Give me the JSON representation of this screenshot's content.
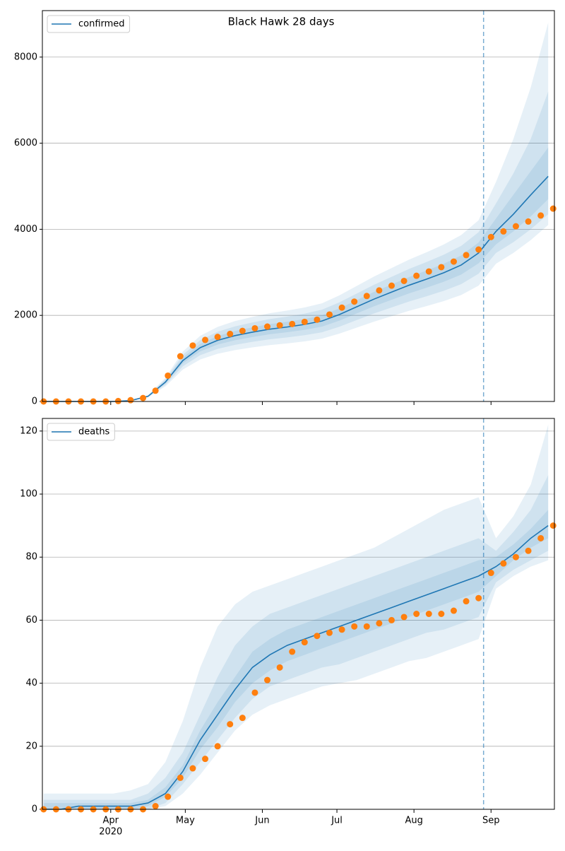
{
  "chart_data": [
    {
      "type": "line",
      "title": "Black Hawk 28 days",
      "sharex": true,
      "ylim": [
        0,
        9080
      ],
      "yticks": [
        0,
        2000,
        4000,
        6000,
        8000
      ],
      "grid": "y",
      "legend": "upper left",
      "vline": {
        "x": 242,
        "color": "#1f77b4",
        "style": "dashed"
      },
      "series": [
        {
          "name": "confirmed",
          "color": "#1f77b4",
          "x": [
            65,
            72,
            79,
            86,
            93,
            100,
            107,
            114,
            121,
            128,
            135,
            142,
            149,
            156,
            163,
            170,
            177,
            184,
            191,
            198,
            205,
            212,
            219,
            226,
            233,
            240,
            247,
            254,
            261,
            268
          ],
          "values": [
            0,
            0,
            0,
            0,
            0,
            20,
            120,
            450,
            950,
            1250,
            1420,
            1530,
            1610,
            1680,
            1730,
            1790,
            1870,
            2020,
            2200,
            2380,
            2540,
            2700,
            2840,
            2990,
            3170,
            3450,
            3950,
            4350,
            4800,
            5230
          ],
          "bands": [
            {
              "lower": [
                0,
                0,
                0,
                0,
                0,
                16,
                94,
                351,
                741,
                975,
                1108,
                1193,
                1256,
                1310,
                1349,
                1396,
                1459,
                1576,
                1716,
                1856,
                1981,
                2106,
                2215,
                2332,
                2473,
                2691,
                3200,
                3450,
                3750,
                4100
              ],
              "upper": [
                0,
                0,
                0,
                0,
                0,
                24,
                146,
                549,
                1159,
                1525,
                1732,
                1867,
                1964,
                2050,
                2111,
                2184,
                2281,
                2464,
                2684,
                2904,
                3099,
                3294,
                3465,
                3648,
                3867,
                4209,
                5100,
                6100,
                7300,
                8800
              ]
            },
            {
              "lower": [
                0,
                0,
                0,
                0,
                0,
                17,
                103,
                387,
                817,
                1075,
                1221,
                1316,
                1385,
                1445,
                1488,
                1539,
                1608,
                1737,
                1892,
                2047,
                2184,
                2322,
                2442,
                2571,
                2726,
                2967,
                3450,
                3700,
                4000,
                4350
              ],
              "upper": [
                0,
                0,
                0,
                0,
                0,
                23,
                137,
                513,
                1083,
                1425,
                1619,
                1744,
                1835,
                1915,
                1972,
                2041,
                2132,
                2303,
                2508,
                2713,
                2896,
                3078,
                3238,
                3409,
                3614,
                3933,
                4600,
                5300,
                6100,
                7200
              ]
            },
            {
              "lower": [
                0,
                0,
                0,
                0,
                0,
                19,
                112,
                419,
                884,
                1163,
                1321,
                1423,
                1497,
                1562,
                1609,
                1665,
                1739,
                1879,
                2046,
                2213,
                2362,
                2511,
                2641,
                2781,
                2948,
                3209,
                3650,
                3950,
                4300,
                4700
              ],
              "upper": [
                0,
                0,
                0,
                0,
                0,
                21,
                128,
                482,
                1017,
                1338,
                1519,
                1637,
                1723,
                1798,
                1851,
                1915,
                2001,
                2161,
                2354,
                2547,
                2718,
                2889,
                3039,
                3199,
                3392,
                3692,
                4250,
                4800,
                5350,
                5900
              ]
            }
          ]
        }
      ],
      "observed": {
        "color": "#ff7f0e",
        "x": [
          65,
          70,
          75,
          80,
          85,
          90,
          95,
          100,
          105,
          110,
          115,
          120,
          125,
          130,
          135,
          140,
          145,
          150,
          155,
          160,
          165,
          170,
          175,
          180,
          185,
          190,
          195,
          200,
          205,
          210,
          215,
          220,
          225,
          230,
          235,
          240,
          245,
          250,
          255,
          260,
          265,
          270
        ],
        "values": [
          0,
          0,
          0,
          0,
          0,
          0,
          10,
          30,
          80,
          250,
          600,
          1050,
          1300,
          1430,
          1500,
          1570,
          1640,
          1700,
          1740,
          1770,
          1800,
          1850,
          1900,
          2020,
          2180,
          2320,
          2450,
          2580,
          2690,
          2800,
          2920,
          3020,
          3120,
          3250,
          3400,
          3530,
          3820,
          3950,
          4070,
          4180,
          4320,
          4480
        ]
      }
    },
    {
      "type": "line",
      "xlim": [
        64.5,
        270.5
      ],
      "xticks": [
        {
          "value": 92,
          "label": "Apr"
        },
        {
          "value": 122,
          "label": "May"
        },
        {
          "value": 153,
          "label": "Jun"
        },
        {
          "value": 183,
          "label": "Jul"
        },
        {
          "value": 214,
          "label": "Aug"
        },
        {
          "value": 245,
          "label": "Sep"
        }
      ],
      "x_year": "2020",
      "ylim": [
        0,
        124
      ],
      "yticks": [
        0,
        20,
        40,
        60,
        80,
        100,
        120
      ],
      "grid": "y",
      "legend": "upper left",
      "vline": {
        "x": 242,
        "color": "#1f77b4",
        "style": "dashed"
      },
      "series": [
        {
          "name": "deaths",
          "color": "#1f77b4",
          "x": [
            65,
            72,
            79,
            86,
            93,
            100,
            107,
            114,
            121,
            128,
            135,
            142,
            149,
            156,
            163,
            170,
            177,
            184,
            191,
            198,
            205,
            212,
            219,
            226,
            233,
            240,
            247,
            254,
            261,
            268
          ],
          "values": [
            0,
            0,
            1,
            1,
            1,
            1,
            2,
            5,
            12,
            22,
            30,
            38,
            45,
            49,
            52,
            54,
            56,
            58,
            60,
            62,
            64,
            66,
            68,
            70,
            72,
            74,
            77,
            81,
            86,
            90
          ],
          "bands": [
            {
              "lower": [
                0,
                0,
                0,
                0,
                0,
                0,
                0,
                1,
                5,
                11,
                18,
                25,
                30,
                33,
                35,
                37,
                39,
                40,
                41,
                43,
                45,
                47,
                48,
                50,
                52,
                54,
                70,
                74,
                77,
                79
              ],
              "upper": [
                5,
                5,
                5,
                5,
                5,
                6,
                8,
                15,
                28,
                45,
                58,
                65,
                69,
                71,
                73,
                75,
                77,
                79,
                81,
                83,
                86,
                89,
                92,
                95,
                97,
                99,
                86,
                93,
                103,
                122
              ]
            },
            {
              "lower": [
                0,
                0,
                0,
                0,
                0,
                0,
                0,
                2,
                8,
                15,
                22,
                29,
                35,
                39,
                41,
                43,
                45,
                46,
                48,
                50,
                52,
                54,
                56,
                57,
                59,
                61,
                72,
                76,
                79,
                82
              ],
              "upper": [
                3,
                3,
                3,
                3,
                3,
                3,
                5,
                10,
                18,
                30,
                42,
                52,
                58,
                62,
                64,
                66,
                68,
                70,
                72,
                74,
                76,
                78,
                80,
                82,
                84,
                86,
                82,
                88,
                95,
                106
              ]
            },
            {
              "lower": [
                0,
                0,
                0,
                0,
                0,
                0,
                1,
                4,
                10,
                19,
                26,
                34,
                40,
                44,
                47,
                49,
                51,
                53,
                55,
                57,
                59,
                61,
                63,
                65,
                67,
                69,
                74,
                79,
                83,
                86
              ],
              "upper": [
                2,
                2,
                2,
                2,
                2,
                2,
                3,
                7,
                14,
                25,
                34,
                42,
                50,
                54,
                57,
                59,
                61,
                63,
                65,
                67,
                69,
                71,
                73,
                75,
                77,
                79,
                80,
                84,
                89,
                95
              ]
            }
          ]
        }
      ],
      "observed": {
        "color": "#ff7f0e",
        "x": [
          65,
          70,
          75,
          80,
          85,
          90,
          95,
          100,
          105,
          110,
          115,
          120,
          125,
          130,
          135,
          140,
          145,
          150,
          155,
          160,
          165,
          170,
          175,
          180,
          185,
          190,
          195,
          200,
          205,
          210,
          215,
          220,
          225,
          230,
          235,
          240,
          245,
          250,
          255,
          260,
          265,
          270
        ],
        "values": [
          0,
          0,
          0,
          0,
          0,
          0,
          0,
          0,
          0,
          1,
          4,
          10,
          13,
          16,
          20,
          27,
          29,
          37,
          41,
          45,
          50,
          53,
          55,
          56,
          57,
          58,
          58,
          59,
          60,
          61,
          62,
          62,
          62,
          63,
          66,
          67,
          75,
          78,
          80,
          82,
          86,
          90
        ]
      }
    }
  ]
}
